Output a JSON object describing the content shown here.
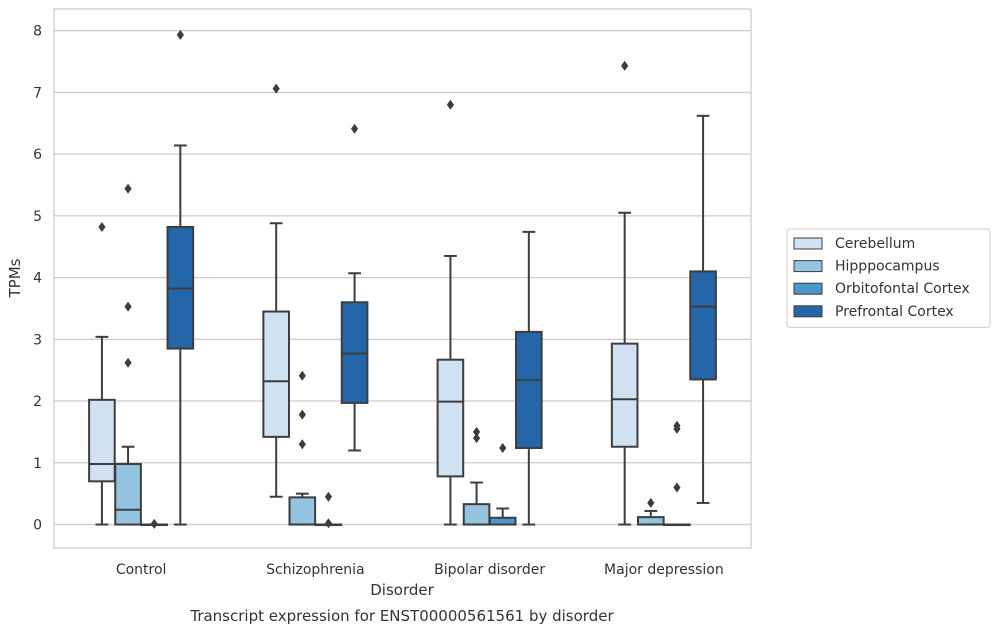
{
  "chart_data": {
    "type": "box",
    "title": "",
    "caption": "Transcript expression for ENST00000561561 by disorder",
    "xlabel": "Disorder",
    "ylabel": "TPMs",
    "ylim": [
      -0.38,
      8.35
    ],
    "yticks": [
      0,
      1,
      2,
      3,
      4,
      5,
      6,
      7,
      8
    ],
    "grid": true,
    "legend_position": "right",
    "categories": [
      "Control",
      "Schizophrenia",
      "Bipolar disorder",
      "Major depression"
    ],
    "series": [
      {
        "name": "Cerebellum",
        "color": "#d0e1f2",
        "boxes": [
          {
            "whislo": 0,
            "q1": 0.7,
            "med": 0.98,
            "q3": 2.02,
            "whishi": 3.04,
            "fliers": [
              4.82
            ]
          },
          {
            "whislo": 0.45,
            "q1": 1.42,
            "med": 2.32,
            "q3": 3.45,
            "whishi": 4.88,
            "fliers": [
              7.06
            ]
          },
          {
            "whislo": 0,
            "q1": 0.78,
            "med": 1.99,
            "q3": 2.67,
            "whishi": 4.35,
            "fliers": [
              6.8
            ]
          },
          {
            "whislo": 0,
            "q1": 1.26,
            "med": 2.03,
            "q3": 2.93,
            "whishi": 5.05,
            "fliers": [
              7.43
            ]
          }
        ]
      },
      {
        "name": "Hipppocampus",
        "color": "#94c4df",
        "boxes": [
          {
            "whislo": 0,
            "q1": 0,
            "med": 0.24,
            "q3": 0.98,
            "whishi": 1.26,
            "fliers": [
              2.62,
              3.53,
              5.44
            ]
          },
          {
            "whislo": 0,
            "q1": 0,
            "med": 0,
            "q3": 0.44,
            "whishi": 0.5,
            "fliers": [
              1.3,
              1.78,
              2.41
            ]
          },
          {
            "whislo": 0,
            "q1": 0,
            "med": 0,
            "q3": 0.33,
            "whishi": 0.68,
            "fliers": [
              1.4,
              1.5
            ]
          },
          {
            "whislo": 0,
            "q1": 0,
            "med": 0,
            "q3": 0.12,
            "whishi": 0.22,
            "fliers": [
              0.35
            ]
          }
        ]
      },
      {
        "name": "Orbitofontal Cortex",
        "color": "#4a98c9",
        "boxes": [
          {
            "whislo": 0,
            "q1": 0,
            "med": 0,
            "q3": 0,
            "whishi": 0,
            "fliers": [
              0.01
            ]
          },
          {
            "whislo": 0,
            "q1": 0,
            "med": 0,
            "q3": 0,
            "whishi": 0,
            "fliers": [
              0.02,
              0.45
            ]
          },
          {
            "whislo": 0,
            "q1": 0,
            "med": 0,
            "q3": 0.11,
            "whishi": 0.26,
            "fliers": [
              1.24
            ]
          },
          {
            "whislo": 0,
            "q1": 0,
            "med": 0,
            "q3": 0,
            "whishi": 0,
            "fliers": [
              0.6,
              1.55,
              1.6
            ]
          }
        ]
      },
      {
        "name": "Prefrontal Cortex",
        "color": "#2566a8",
        "boxes": [
          {
            "whislo": 0,
            "q1": 2.85,
            "med": 3.82,
            "q3": 4.82,
            "whishi": 6.14,
            "fliers": [
              7.93
            ]
          },
          {
            "whislo": 1.2,
            "q1": 1.97,
            "med": 2.77,
            "q3": 3.6,
            "whishi": 4.07,
            "fliers": [
              6.41
            ]
          },
          {
            "whislo": 0,
            "q1": 1.24,
            "med": 2.34,
            "q3": 3.12,
            "whishi": 4.74,
            "fliers": []
          },
          {
            "whislo": 0.35,
            "q1": 2.35,
            "med": 3.53,
            "q3": 4.1,
            "whishi": 6.62,
            "fliers": []
          }
        ]
      }
    ]
  }
}
